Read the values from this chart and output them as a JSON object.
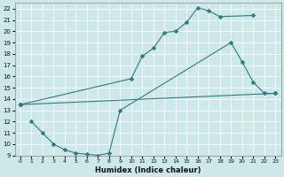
{
  "xlabel": "Humidex (Indice chaleur)",
  "bg_color": "#cce8e8",
  "line_color": "#2a7d7d",
  "grid_color": "#ffffff",
  "xlim": [
    -0.5,
    23.5
  ],
  "ylim": [
    9,
    22.5
  ],
  "xticks": [
    0,
    1,
    2,
    3,
    4,
    5,
    6,
    7,
    8,
    9,
    10,
    11,
    12,
    13,
    14,
    15,
    16,
    17,
    18,
    19,
    20,
    21,
    22,
    23
  ],
  "yticks": [
    9,
    10,
    11,
    12,
    13,
    14,
    15,
    16,
    17,
    18,
    19,
    20,
    21,
    22
  ],
  "line1_x": [
    0,
    10,
    11,
    12,
    13,
    14,
    15,
    16,
    17,
    18,
    21
  ],
  "line1_y": [
    13.5,
    15.8,
    17.8,
    18.5,
    19.9,
    20.0,
    20.8,
    22.1,
    21.8,
    21.3,
    21.4
  ],
  "line2_x": [
    0,
    23
  ],
  "line2_y": [
    13.5,
    14.5
  ],
  "line3_x": [
    1,
    2,
    3,
    4,
    5,
    6,
    7,
    8,
    9,
    19,
    20,
    21,
    22,
    23
  ],
  "line3_y": [
    12.0,
    11.0,
    10.0,
    9.5,
    9.2,
    9.1,
    9.0,
    9.2,
    13.0,
    19.0,
    17.3,
    15.5,
    14.5,
    14.5
  ],
  "markersize": 2.5
}
